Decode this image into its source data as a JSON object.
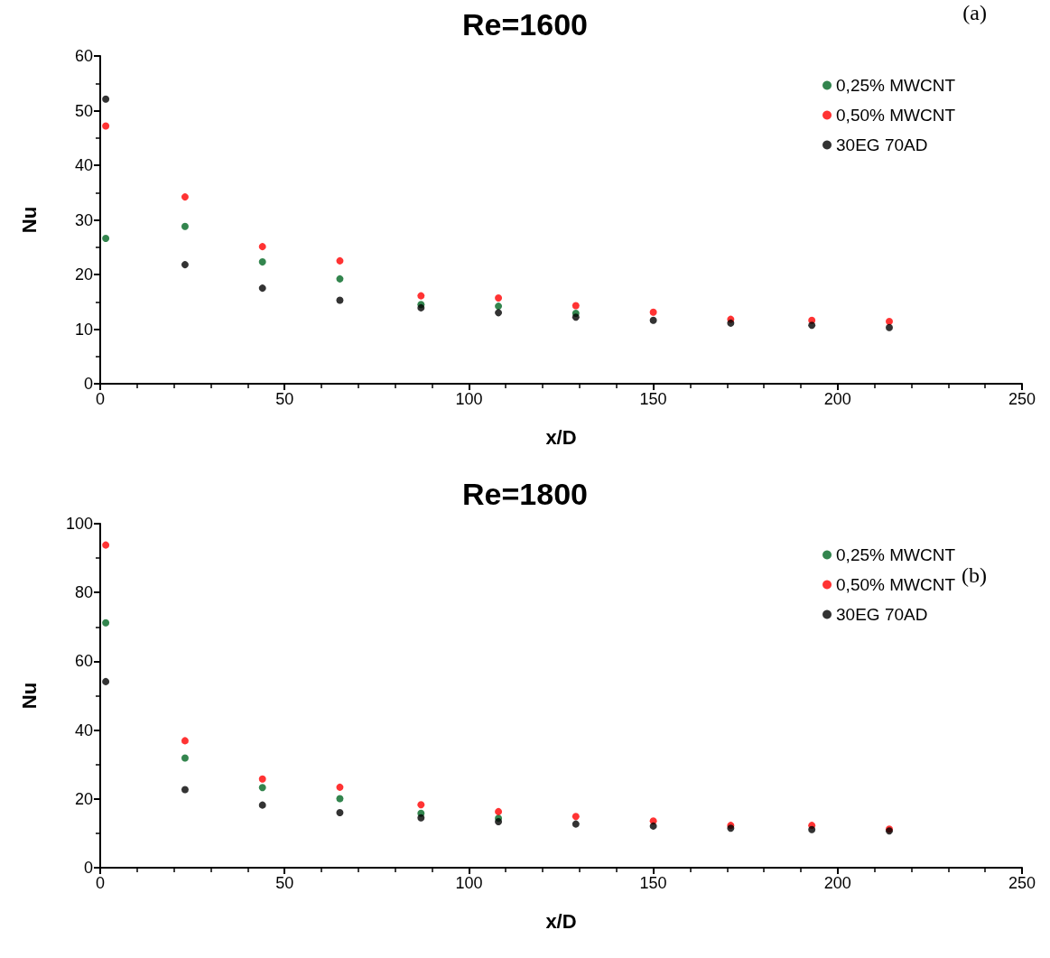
{
  "chart_data": [
    {
      "type": "scatter",
      "title": "Re=1600",
      "xlabel": "x/D",
      "ylabel": "Nu",
      "annotations": [
        "(a)"
      ],
      "marker": "circle",
      "legend": "top right",
      "grid": false,
      "xlim": [
        0,
        250
      ],
      "xticks": [
        0,
        50,
        100,
        150,
        200,
        250
      ],
      "ylim": [
        0,
        60
      ],
      "yticks": [
        0,
        10,
        20,
        30,
        40,
        50,
        60
      ],
      "x": [
        1.5,
        23,
        44,
        65,
        87,
        108,
        129,
        150,
        171,
        193,
        214
      ],
      "series": [
        {
          "name": "0,25% MWCNT",
          "color": "#006622",
          "values": [
            26.6,
            28.8,
            22.3,
            19.2,
            14.5,
            14.2,
            12.9,
            null,
            null,
            null,
            null
          ]
        },
        {
          "name": "0,50% MWCNT",
          "color": "#ff0000",
          "values": [
            47.2,
            34.2,
            25.1,
            22.5,
            16.1,
            15.7,
            14.3,
            13.1,
            11.8,
            11.6,
            11.4
          ]
        },
        {
          "name": "30EG 70AD",
          "color": "#000000",
          "values": [
            52.1,
            21.8,
            17.5,
            15.3,
            13.9,
            13.0,
            12.2,
            11.6,
            11.1,
            10.7,
            10.3
          ]
        }
      ]
    },
    {
      "type": "scatter",
      "title": "Re=1800",
      "xlabel": "x/D",
      "ylabel": "Nu",
      "annotations": [
        "(b)"
      ],
      "marker": "circle",
      "legend": "top right",
      "grid": false,
      "xlim": [
        0,
        250
      ],
      "xticks": [
        0,
        50,
        100,
        150,
        200,
        250
      ],
      "ylim": [
        0,
        100
      ],
      "yticks": [
        0,
        20,
        40,
        60,
        80,
        100
      ],
      "x": [
        1.5,
        23,
        44,
        65,
        87,
        108,
        129,
        150,
        171,
        193,
        214
      ],
      "series": [
        {
          "name": "0,25% MWCNT",
          "color": "#006622",
          "values": [
            71.2,
            31.9,
            23.3,
            20.1,
            15.8,
            14.4,
            null,
            null,
            null,
            null,
            null
          ]
        },
        {
          "name": "0,50% MWCNT",
          "color": "#ff0000",
          "values": [
            93.8,
            36.9,
            25.8,
            23.4,
            18.3,
            16.3,
            14.9,
            13.6,
            12.3,
            12.3,
            11.2
          ]
        },
        {
          "name": "30EG 70AD",
          "color": "#000000",
          "values": [
            54.1,
            22.7,
            18.2,
            16.0,
            14.5,
            13.4,
            12.7,
            12.1,
            11.5,
            11.1,
            10.7
          ]
        }
      ]
    }
  ]
}
